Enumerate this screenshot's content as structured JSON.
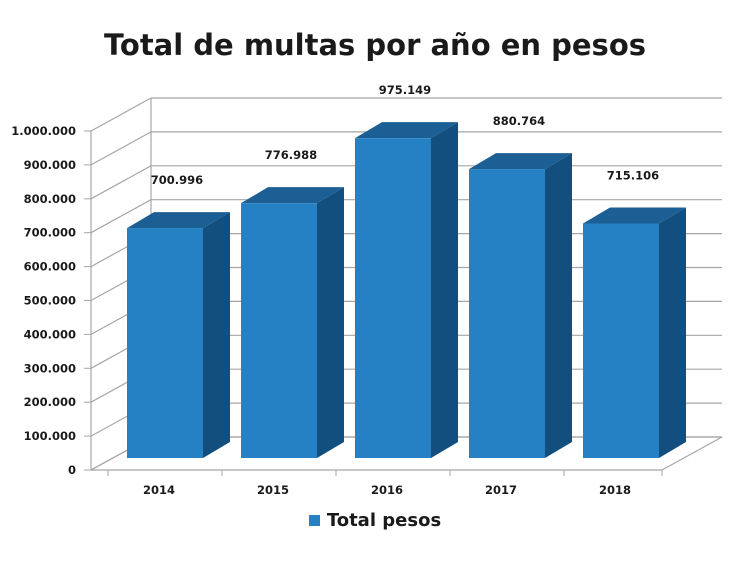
{
  "chart_data": {
    "type": "bar",
    "title": "Total de multas por año en pesos",
    "categories": [
      "2014",
      "2015",
      "2016",
      "2017",
      "2018"
    ],
    "series": [
      {
        "name": "Total pesos",
        "values": [
          700996,
          776988,
          975149,
          880764,
          715106
        ]
      }
    ],
    "value_labels": [
      "700.996",
      "776.988",
      "975.149",
      "880.764",
      "715.106"
    ],
    "y_ticks": [
      0,
      100000,
      200000,
      300000,
      400000,
      500000,
      600000,
      700000,
      800000,
      900000,
      1000000
    ],
    "y_tick_labels": [
      "0",
      "100.000",
      "200.000",
      "300.000",
      "400.000",
      "500.000",
      "600.000",
      "700.000",
      "800.000",
      "900.000",
      "1.000.000"
    ],
    "ylim": [
      0,
      1000000
    ],
    "grid": true,
    "legend_position": "bottom",
    "style": "3d",
    "colors": {
      "front": "#2581c4",
      "top": "#1b5f94",
      "side": "#134f7e",
      "grid": "#a6a6a6"
    }
  }
}
